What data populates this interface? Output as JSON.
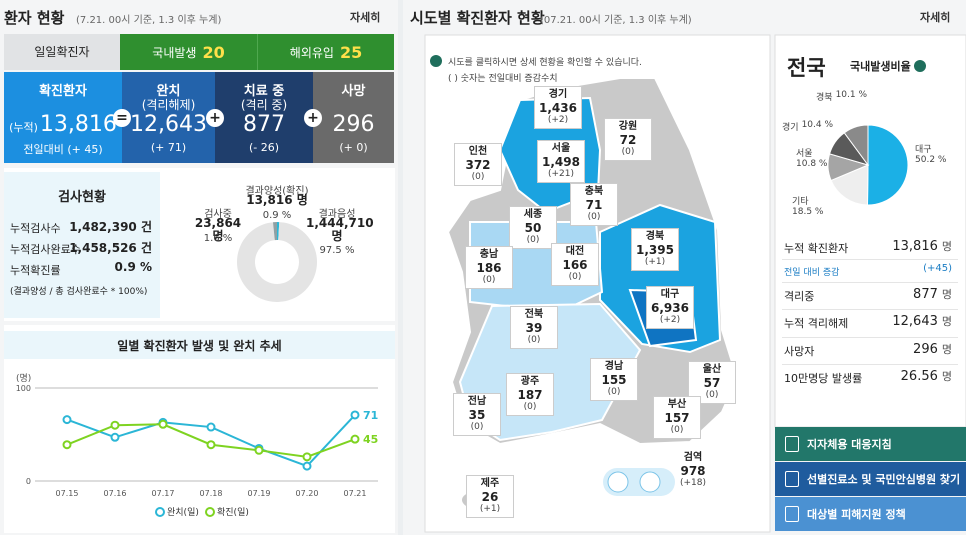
{
  "left": {
    "header": {
      "title": "환자 현황",
      "subtitle": "(7.21. 00시 기준, 1.3 이후 누계)",
      "more": "자세히"
    },
    "daily": {
      "label": "일일확진자",
      "items": [
        {
          "label": "국내발생",
          "value": "20"
        },
        {
          "label": "해외유입",
          "value": "25"
        }
      ]
    },
    "summary": [
      {
        "title": "확진환자",
        "prefix": "(누적)",
        "value": "13,816",
        "change": "전일대비 (+ 45)"
      },
      {
        "title": "완치",
        "sub": "(격리해제)",
        "value": "12,643",
        "change": "(+ 71)"
      },
      {
        "title": "치료 중",
        "sub": "(격리 중)",
        "value": "877",
        "change": "(- 26)"
      },
      {
        "title": "사망",
        "value": "296",
        "change": "(+ 0)"
      }
    ],
    "operators": [
      "=",
      "+",
      "+"
    ],
    "tests": {
      "title": "검사현황",
      "rows": [
        [
          "누적검사수",
          "1,482,390 건"
        ],
        [
          "누적검사완료수",
          "1,458,526 건"
        ],
        [
          "누적확진률",
          "0.9 %"
        ]
      ],
      "note": "(결과양성 / 총 검사완료수 * 100%)"
    }
  },
  "chart_data": [
    {
      "type": "donut",
      "categories": [
        "결과양성(확진)",
        "결과음성",
        "검사중"
      ],
      "counts": [
        "13,816 명",
        "1,444,710 명",
        "23,864 명"
      ],
      "values": [
        0.9,
        97.5,
        1.6
      ],
      "value_labels": [
        "0.9 %",
        "97.5 %",
        "1.6 %"
      ],
      "colors": [
        "#2bb6d6",
        "#e4e4e4",
        "#8fa0a4"
      ]
    },
    {
      "type": "line",
      "title": "일별 확진환자 발생 및 완치 추세",
      "y_unit": "(명)",
      "categories": [
        "07.15",
        "07.16",
        "07.17",
        "07.18",
        "07.19",
        "07.20",
        "07.21"
      ],
      "ylim": [
        0,
        100
      ],
      "yticks": [
        0,
        100
      ],
      "series": [
        {
          "name": "완치(일)",
          "color": "#2bb6d6",
          "values": [
            66,
            47,
            63,
            58,
            35,
            16,
            71
          ]
        },
        {
          "name": "확진(일)",
          "color": "#7ed321",
          "values": [
            39,
            60,
            61,
            39,
            33,
            26,
            45
          ]
        }
      ]
    },
    {
      "type": "pie",
      "title": "국내발생비율",
      "categories": [
        "대구",
        "기타",
        "서울",
        "경기",
        "경북"
      ],
      "values": [
        50.2,
        18.5,
        10.8,
        10.4,
        10.1
      ],
      "value_labels": [
        "50.2 %",
        "18.5 %",
        "10.8 %",
        "10.4 %",
        "10.1 %"
      ],
      "colors": [
        "#1bb0e6",
        "#eeeeee",
        "#a5a5a5",
        "#5a5a5a",
        "#8a8a8a"
      ]
    }
  ],
  "right": {
    "header": {
      "title": "시도별 확진환자 현황",
      "subtitle": "(07.21. 00시 기준, 1.3 이후 누계)",
      "more": "자세히"
    },
    "notice": [
      "시도를 클릭하시면 상세 현황을 확인할 수 있습니다.",
      "( ) 숫자는 전일대비 증감수치"
    ],
    "regions": [
      {
        "name": "경기",
        "total": "1,436",
        "change": "(+2)"
      },
      {
        "name": "강원",
        "total": "72",
        "change": "(0)"
      },
      {
        "name": "인천",
        "total": "372",
        "change": "(0)"
      },
      {
        "name": "서울",
        "total": "1,498",
        "change": "(+21)"
      },
      {
        "name": "충북",
        "total": "71",
        "change": "(0)"
      },
      {
        "name": "세종",
        "total": "50",
        "change": "(0)"
      },
      {
        "name": "대전",
        "total": "166",
        "change": "(0)"
      },
      {
        "name": "경북",
        "total": "1,395",
        "change": "(+1)"
      },
      {
        "name": "충남",
        "total": "186",
        "change": "(0)"
      },
      {
        "name": "전북",
        "total": "39",
        "change": "(0)"
      },
      {
        "name": "대구",
        "total": "6,936",
        "change": "(+2)"
      },
      {
        "name": "경남",
        "total": "155",
        "change": "(0)"
      },
      {
        "name": "울산",
        "total": "57",
        "change": "(0)"
      },
      {
        "name": "광주",
        "total": "187",
        "change": "(0)"
      },
      {
        "name": "전남",
        "total": "35",
        "change": "(0)"
      },
      {
        "name": "부산",
        "total": "157",
        "change": "(0)"
      },
      {
        "name": "검역",
        "total": "978",
        "change": "(+18)"
      },
      {
        "name": "제주",
        "total": "26",
        "change": "(+1)"
      }
    ],
    "side": {
      "title": "전국",
      "stats": [
        {
          "label": "누적 확진환자",
          "value": "13,816",
          "unit": "명"
        },
        {
          "label": "전일 대비 증감",
          "value": "(+45)"
        },
        {
          "label": "격리중",
          "value": "877",
          "unit": "명"
        },
        {
          "label": "누적 격리해제",
          "value": "12,643",
          "unit": "명"
        },
        {
          "label": "사망자",
          "value": "296",
          "unit": "명"
        },
        {
          "label": "10만명당 발생률",
          "value": "26.56",
          "unit": "명"
        }
      ]
    },
    "buttons": [
      "지자체용 대응지침",
      "선별진료소 및 국민안심병원 찾기",
      "대상별 피해지원 정책"
    ]
  }
}
